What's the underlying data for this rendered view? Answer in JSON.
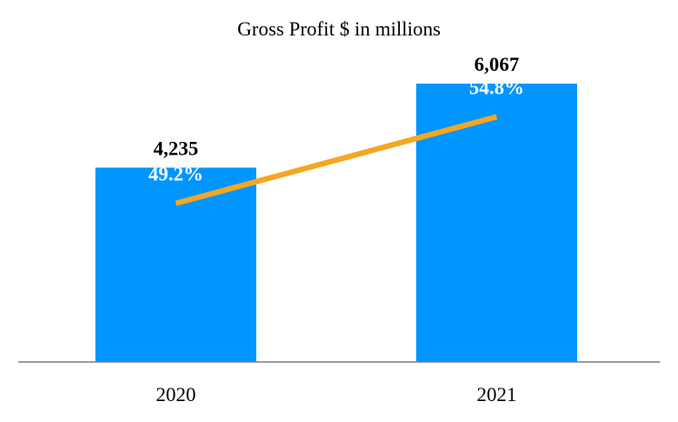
{
  "chart_data": {
    "type": "bar",
    "title": "Gross Profit $ in millions",
    "categories": [
      "2020",
      "2021"
    ],
    "values": [
      4235,
      6067
    ],
    "value_labels": [
      "4,235",
      "6,067"
    ],
    "ylim": [
      0,
      6700
    ],
    "bar_color": "#0095FF",
    "line_series": {
      "values": [
        49.2,
        54.8
      ],
      "labels": [
        "49.2%",
        "54.8%"
      ],
      "range": [
        40,
        60
      ],
      "color": "#F5A623"
    },
    "grid": false,
    "legend": "none"
  }
}
